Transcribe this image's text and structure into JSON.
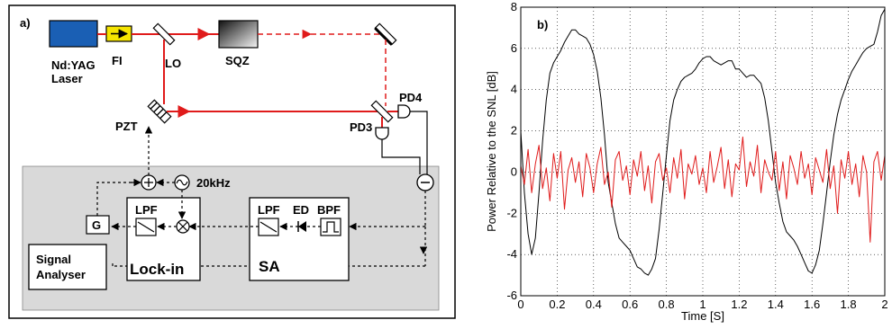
{
  "panel_a": {
    "panel_label": "a)",
    "labels": {
      "laser": [
        "Nd:YAG",
        "Laser"
      ],
      "fi": "FI",
      "lo": "LO",
      "sqz": "SQZ",
      "pzt": "PZT",
      "pd3": "PD3",
      "pd4": "PD4",
      "freq": "20kHz",
      "g": "G",
      "lpf_lockin": "LPF",
      "lockin": "Lock-in",
      "lpf_sa": "LPF",
      "ed": "ED",
      "bpf": "BPF",
      "sa": "SA",
      "signal_analyser": [
        "Signal",
        "Analyser"
      ]
    },
    "colors": {
      "laser_blue": "#1a5fb4",
      "fi_yellow": "#f5e400",
      "beam_red": "#e01b1b",
      "electronics_bg": "#d9d9d9"
    }
  },
  "chart_data": {
    "type": "line",
    "panel_label": "b)",
    "title": "",
    "xlabel": "Time [S]",
    "ylabel": "Power Relative to the SNL [dB]",
    "xlim": [
      0,
      2
    ],
    "ylim": [
      -6,
      8
    ],
    "xticks": [
      "0",
      "0.2",
      "0.4",
      "0.6",
      "0.8",
      "1",
      "1.2",
      "1.4",
      "1.6",
      "1.8",
      "2"
    ],
    "yticks": [
      "-6",
      "-4",
      "-2",
      "0",
      "2",
      "4",
      "6",
      "8"
    ],
    "grid": true,
    "series": [
      {
        "color": "#000000",
        "x": [
          0,
          0.02,
          0.04,
          0.06,
          0.08,
          0.1,
          0.12,
          0.14,
          0.16,
          0.18,
          0.2,
          0.22,
          0.24,
          0.26,
          0.28,
          0.3,
          0.32,
          0.34,
          0.36,
          0.38,
          0.4,
          0.42,
          0.44,
          0.46,
          0.48,
          0.5,
          0.52,
          0.54,
          0.56,
          0.58,
          0.6,
          0.62,
          0.64,
          0.66,
          0.68,
          0.7,
          0.72,
          0.74,
          0.76,
          0.78,
          0.8,
          0.82,
          0.84,
          0.86,
          0.88,
          0.9,
          0.92,
          0.94,
          0.96,
          0.98,
          1.0,
          1.02,
          1.04,
          1.06,
          1.08,
          1.1,
          1.12,
          1.14,
          1.16,
          1.18,
          1.2,
          1.22,
          1.24,
          1.26,
          1.28,
          1.3,
          1.32,
          1.34,
          1.36,
          1.38,
          1.4,
          1.42,
          1.44,
          1.46,
          1.48,
          1.5,
          1.52,
          1.54,
          1.56,
          1.58,
          1.6,
          1.62,
          1.64,
          1.66,
          1.68,
          1.7,
          1.72,
          1.74,
          1.76,
          1.78,
          1.8,
          1.82,
          1.84,
          1.86,
          1.88,
          1.9,
          1.92,
          1.94,
          1.96,
          1.98,
          2.0
        ],
        "y": [
          2.0,
          -1.0,
          -3.0,
          -4.0,
          -3.2,
          -1.0,
          1.5,
          3.5,
          4.8,
          5.3,
          5.6,
          5.9,
          6.3,
          6.6,
          6.9,
          6.9,
          6.7,
          6.6,
          6.5,
          6.2,
          5.7,
          4.9,
          3.6,
          1.8,
          -0.5,
          -1.5,
          -2.5,
          -3.2,
          -3.4,
          -3.6,
          -3.8,
          -4.2,
          -4.6,
          -4.7,
          -4.9,
          -5.0,
          -4.7,
          -4.2,
          -2.8,
          -1.0,
          0.8,
          2.5,
          3.5,
          4.0,
          4.4,
          4.6,
          4.7,
          4.8,
          5.0,
          5.3,
          5.5,
          5.6,
          5.6,
          5.4,
          5.3,
          5.2,
          5.3,
          5.4,
          5.4,
          5.0,
          5.0,
          4.8,
          4.6,
          4.7,
          4.7,
          4.5,
          4.3,
          3.6,
          2.5,
          1.0,
          -0.5,
          -1.5,
          -2.4,
          -2.9,
          -3.1,
          -3.3,
          -3.6,
          -4.0,
          -4.4,
          -4.8,
          -4.9,
          -4.5,
          -3.8,
          -2.5,
          -1.0,
          0.5,
          1.8,
          2.8,
          3.5,
          4.0,
          4.5,
          4.9,
          5.2,
          5.5,
          5.8,
          6.0,
          6.1,
          6.2,
          6.8,
          7.6,
          7.9
        ]
      },
      {
        "color": "#e01b1b",
        "x": [
          0,
          0.02,
          0.04,
          0.06,
          0.08,
          0.1,
          0.12,
          0.14,
          0.16,
          0.18,
          0.2,
          0.22,
          0.24,
          0.26,
          0.28,
          0.3,
          0.32,
          0.34,
          0.36,
          0.38,
          0.4,
          0.42,
          0.44,
          0.46,
          0.48,
          0.5,
          0.52,
          0.54,
          0.56,
          0.58,
          0.6,
          0.62,
          0.64,
          0.66,
          0.68,
          0.7,
          0.72,
          0.74,
          0.76,
          0.78,
          0.8,
          0.82,
          0.84,
          0.86,
          0.88,
          0.9,
          0.92,
          0.94,
          0.96,
          0.98,
          1.0,
          1.02,
          1.04,
          1.06,
          1.08,
          1.1,
          1.12,
          1.14,
          1.16,
          1.18,
          1.2,
          1.22,
          1.24,
          1.26,
          1.28,
          1.3,
          1.32,
          1.34,
          1.36,
          1.38,
          1.4,
          1.42,
          1.44,
          1.46,
          1.48,
          1.5,
          1.52,
          1.54,
          1.56,
          1.58,
          1.6,
          1.62,
          1.64,
          1.66,
          1.68,
          1.7,
          1.72,
          1.74,
          1.76,
          1.78,
          1.8,
          1.82,
          1.84,
          1.86,
          1.88,
          1.9,
          1.92,
          1.94,
          1.96,
          1.98,
          2.0
        ],
        "y": [
          0.3,
          -0.6,
          1.1,
          -1.0,
          0.4,
          1.3,
          -0.8,
          0.2,
          -1.4,
          0.9,
          -0.3,
          1.0,
          -1.8,
          0.1,
          0.7,
          -0.5,
          0.5,
          -1.2,
          0.9,
          0.2,
          -1.0,
          0.4,
          1.2,
          -0.6,
          0.0,
          -1.7,
          0.6,
          1.0,
          -0.4,
          0.3,
          -1.1,
          0.6,
          -0.2,
          1.0,
          -0.9,
          0.3,
          -1.5,
          0.5,
          0.9,
          -0.4,
          0.2,
          -1.0,
          0.7,
          -0.3,
          1.1,
          -1.3,
          0.4,
          -0.1,
          0.8,
          -0.6,
          0.2,
          -1.0,
          1.0,
          -0.5,
          0.3,
          1.2,
          -0.8,
          0.6,
          -1.2,
          0.4,
          0.1,
          1.7,
          -0.7,
          0.5,
          -0.2,
          1.3,
          -1.0,
          0.6,
          0.0,
          -0.4,
          1.0,
          -0.9,
          0.5,
          -1.3,
          0.8,
          0.2,
          -0.6,
          1.0,
          -0.3,
          0.4,
          -1.1,
          0.7,
          0.1,
          -0.5,
          1.1,
          -0.8,
          0.3,
          -2.0,
          0.6,
          -0.3,
          1.0,
          -0.6,
          0.4,
          -1.2,
          0.8,
          0.0,
          -3.4,
          0.5,
          1.0,
          -0.4,
          0.8
        ]
      }
    ]
  }
}
